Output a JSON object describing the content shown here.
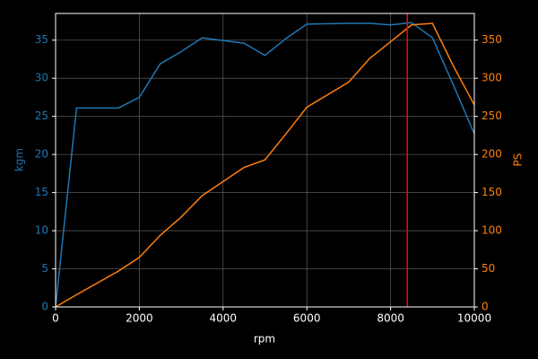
{
  "chart_data": {
    "type": "line",
    "xlabel": "rpm",
    "ylabel": "kgm",
    "y2label": "PS",
    "x": [
      0,
      500,
      1500,
      2000,
      2500,
      3000,
      3500,
      4500,
      5000,
      5500,
      6000,
      7000,
      7500,
      8000,
      8500,
      9000,
      9500,
      10000
    ],
    "series": [
      {
        "name": "kgm",
        "color": "#1f77b4",
        "values": [
          0,
          26.1,
          26.1,
          27.5,
          31.9,
          33.5,
          35.3,
          34.6,
          33.0,
          35.2,
          37.1,
          37.2,
          37.2,
          37.0,
          37.3,
          35.3,
          29.1,
          22.7
        ]
      },
      {
        "name": "PS",
        "color": "#ff7f0e",
        "axis": "y2",
        "values": [
          0,
          16,
          47,
          65,
          94,
          118,
          146,
          183,
          193,
          227,
          262,
          295,
          326,
          348,
          370,
          372,
          316,
          265
        ]
      }
    ],
    "vline": {
      "x": 8400,
      "color": "#ff0000"
    },
    "xlim": [
      0,
      10000
    ],
    "xticks": [
      0,
      2000,
      4000,
      6000,
      8000,
      10000
    ],
    "ylim": [
      0,
      38.5
    ],
    "yticks": [
      0,
      5,
      10,
      15,
      20,
      25,
      30,
      35
    ],
    "y2lim": [
      0,
      385
    ],
    "y2ticks": [
      0,
      50,
      100,
      150,
      200,
      250,
      300,
      350
    ],
    "grid": true
  }
}
